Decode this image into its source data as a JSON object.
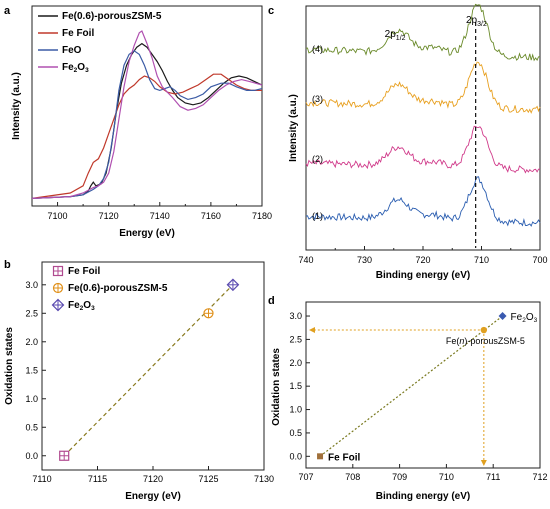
{
  "figure": {
    "panels": [
      "a",
      "b",
      "c",
      "d"
    ]
  },
  "chart_data": [
    {
      "panel": "a",
      "type": "line",
      "xlabel": "Energy (eV)",
      "ylabel": "Intensity (a.u.)",
      "xlim": [
        7090,
        7180
      ],
      "xticks": [
        7100,
        7120,
        7140,
        7160,
        7180
      ],
      "yticks_shown": false,
      "legend_position": "top-left",
      "series": [
        {
          "name": "Fe(0.6)-porousZSM-5",
          "color": "#1a1a1a",
          "points": [
            [
              7090,
              0.02
            ],
            [
              7105,
              0.03
            ],
            [
              7110,
              0.04
            ],
            [
              7112,
              0.06
            ],
            [
              7113,
              0.09
            ],
            [
              7114,
              0.11
            ],
            [
              7115,
              0.09
            ],
            [
              7117,
              0.1
            ],
            [
              7119,
              0.16
            ],
            [
              7121,
              0.3
            ],
            [
              7123,
              0.5
            ],
            [
              7125,
              0.66
            ],
            [
              7127,
              0.76
            ],
            [
              7129,
              0.82
            ],
            [
              7131,
              0.86
            ],
            [
              7133,
              0.88
            ],
            [
              7135,
              0.86
            ],
            [
              7137,
              0.82
            ],
            [
              7139,
              0.78
            ],
            [
              7141,
              0.73
            ],
            [
              7143,
              0.67
            ],
            [
              7145,
              0.62
            ],
            [
              7147,
              0.58
            ],
            [
              7150,
              0.55
            ],
            [
              7153,
              0.54
            ],
            [
              7156,
              0.55
            ],
            [
              7159,
              0.58
            ],
            [
              7162,
              0.62
            ],
            [
              7165,
              0.66
            ],
            [
              7168,
              0.69
            ],
            [
              7171,
              0.7
            ],
            [
              7174,
              0.69
            ],
            [
              7177,
              0.67
            ],
            [
              7180,
              0.65
            ]
          ]
        },
        {
          "name": "Fe Foil",
          "color": "#c0392b",
          "points": [
            [
              7090,
              0.02
            ],
            [
              7105,
              0.05
            ],
            [
              7110,
              0.09
            ],
            [
              7112,
              0.16
            ],
            [
              7114,
              0.22
            ],
            [
              7116,
              0.24
            ],
            [
              7118,
              0.3
            ],
            [
              7120,
              0.38
            ],
            [
              7122,
              0.46
            ],
            [
              7124,
              0.54
            ],
            [
              7126,
              0.6
            ],
            [
              7128,
              0.63
            ],
            [
              7130,
              0.65
            ],
            [
              7132,
              0.68
            ],
            [
              7134,
              0.7
            ],
            [
              7136,
              0.69
            ],
            [
              7138,
              0.67
            ],
            [
              7140,
              0.64
            ],
            [
              7143,
              0.61
            ],
            [
              7146,
              0.6
            ],
            [
              7149,
              0.61
            ],
            [
              7152,
              0.63
            ],
            [
              7155,
              0.65
            ],
            [
              7158,
              0.68
            ],
            [
              7161,
              0.71
            ],
            [
              7164,
              0.71
            ],
            [
              7167,
              0.68
            ],
            [
              7170,
              0.65
            ],
            [
              7173,
              0.63
            ],
            [
              7176,
              0.62
            ],
            [
              7180,
              0.62
            ]
          ]
        },
        {
          "name": "FeO",
          "color": "#3b5ba5",
          "points": [
            [
              7090,
              0.02
            ],
            [
              7105,
              0.03
            ],
            [
              7110,
              0.04
            ],
            [
              7114,
              0.07
            ],
            [
              7116,
              0.09
            ],
            [
              7118,
              0.13
            ],
            [
              7120,
              0.22
            ],
            [
              7122,
              0.4
            ],
            [
              7124,
              0.62
            ],
            [
              7126,
              0.76
            ],
            [
              7128,
              0.82
            ],
            [
              7130,
              0.84
            ],
            [
              7132,
              0.82
            ],
            [
              7134,
              0.76
            ],
            [
              7136,
              0.68
            ],
            [
              7138,
              0.63
            ],
            [
              7140,
              0.62
            ],
            [
              7142,
              0.63
            ],
            [
              7144,
              0.64
            ],
            [
              7146,
              0.62
            ],
            [
              7148,
              0.59
            ],
            [
              7151,
              0.57
            ],
            [
              7154,
              0.58
            ],
            [
              7157,
              0.6
            ],
            [
              7160,
              0.64
            ],
            [
              7164,
              0.66
            ],
            [
              7167,
              0.66
            ],
            [
              7170,
              0.64
            ],
            [
              7174,
              0.62
            ],
            [
              7177,
              0.62
            ],
            [
              7180,
              0.63
            ]
          ]
        },
        {
          "name": "Fe2O3",
          "color": "#b050b0",
          "points": [
            [
              7090,
              0.02
            ],
            [
              7105,
              0.03
            ],
            [
              7110,
              0.05
            ],
            [
              7114,
              0.08
            ],
            [
              7116,
              0.09
            ],
            [
              7118,
              0.11
            ],
            [
              7120,
              0.16
            ],
            [
              7122,
              0.28
            ],
            [
              7124,
              0.46
            ],
            [
              7126,
              0.64
            ],
            [
              7128,
              0.78
            ],
            [
              7130,
              0.87
            ],
            [
              7132,
              0.94
            ],
            [
              7133,
              0.95
            ],
            [
              7135,
              0.88
            ],
            [
              7137,
              0.8
            ],
            [
              7139,
              0.7
            ],
            [
              7141,
              0.64
            ],
            [
              7143,
              0.61
            ],
            [
              7145,
              0.58
            ],
            [
              7148,
              0.53
            ],
            [
              7151,
              0.51
            ],
            [
              7154,
              0.52
            ],
            [
              7157,
              0.54
            ],
            [
              7160,
              0.58
            ],
            [
              7163,
              0.62
            ],
            [
              7166,
              0.65
            ],
            [
              7169,
              0.67
            ],
            [
              7172,
              0.68
            ],
            [
              7175,
              0.67
            ],
            [
              7180,
              0.65
            ]
          ]
        }
      ]
    },
    {
      "panel": "b",
      "type": "scatter",
      "xlabel": "Energy (eV)",
      "ylabel": "Oxidation states",
      "xlim": [
        7110,
        7130
      ],
      "ylim": [
        -0.25,
        3.4
      ],
      "xticks": [
        7110,
        7115,
        7120,
        7125,
        7130
      ],
      "yticks": [
        "0.0",
        "0.5",
        "1.0",
        "1.5",
        "2.0",
        "2.5",
        "3.0"
      ],
      "legend_position": "top-left",
      "fit_line": {
        "from": [
          7112,
          0.0
        ],
        "to": [
          7127.2,
          3.0
        ],
        "style": "dashed",
        "color": "#8a7a1e"
      },
      "series": [
        {
          "name": "Fe Foil",
          "color": "#b04a90",
          "marker": "square-plus",
          "x": [
            7112
          ],
          "y": [
            0.0
          ]
        },
        {
          "name": "Fe(0.6)-porousZSM-5",
          "color": "#e0901a",
          "marker": "circle-plus",
          "x": [
            7125
          ],
          "y": [
            2.5
          ]
        },
        {
          "name": "Fe2O3",
          "color": "#5a4ab0",
          "marker": "diamond-plus",
          "x": [
            7127.2
          ],
          "y": [
            3.0
          ]
        }
      ]
    },
    {
      "panel": "c",
      "type": "line",
      "xlabel": "Binding energy (eV)",
      "ylabel": "Intensity (a.u.)",
      "xlim": [
        740,
        700
      ],
      "xticks": [
        740,
        730,
        720,
        710,
        700
      ],
      "yticks_shown": false,
      "annotations": [
        "2p1/2",
        "2p3/2"
      ],
      "vline_x": 711,
      "curve_labels": [
        "(1)",
        "(2)",
        "(3)",
        "(4)"
      ],
      "series": [
        {
          "name": "(1)",
          "color": "#2a5db0",
          "offset": 0,
          "scale": 1.0
        },
        {
          "name": "(2)",
          "color": "#d03a8a",
          "offset": 1,
          "scale": 1.0
        },
        {
          "name": "(3)",
          "color": "#e8a020",
          "offset": 2,
          "scale": 1.1
        },
        {
          "name": "(4)",
          "color": "#6a8a2a",
          "offset": 3,
          "scale": 1.2
        }
      ]
    },
    {
      "panel": "d",
      "type": "scatter",
      "xlabel": "Binding energy (eV)",
      "ylabel": "Oxidation states",
      "xlim": [
        707,
        712
      ],
      "ylim": [
        -0.25,
        3.3
      ],
      "xticks": [
        707,
        708,
        709,
        710,
        711,
        712
      ],
      "yticks": [
        "0.0",
        "0.5",
        "1.0",
        "1.5",
        "2.0",
        "2.5",
        "3.0"
      ],
      "fit_line": {
        "from": [
          707.3,
          0.0
        ],
        "to": [
          711.2,
          3.0
        ],
        "style": "dotted",
        "color": "#7a7a20"
      },
      "guide_lines": {
        "x": 710.8,
        "y": 2.7,
        "color": "#e0a020"
      },
      "series": [
        {
          "name": "Fe Foil",
          "color": "#a0703a",
          "marker": "square",
          "x": [
            707.3
          ],
          "y": [
            0.0
          ]
        },
        {
          "name": "Fe(n)-porousZSM-5",
          "color": "#e0a020",
          "marker": "circle",
          "x": [
            710.8
          ],
          "y": [
            2.7
          ]
        },
        {
          "name": "Fe2O3",
          "color": "#3a5ab0",
          "marker": "diamond",
          "x": [
            711.2
          ],
          "y": [
            3.0
          ]
        }
      ]
    }
  ]
}
